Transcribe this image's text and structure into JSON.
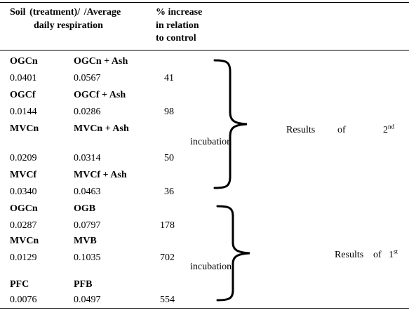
{
  "header": {
    "col1": "Soil   (treatment)/   /Average",
    "col1_line2": "daily respiration",
    "col3_line1": "% increase",
    "col3_line2": "in relation",
    "col3_line3": "to control"
  },
  "rows": [
    {
      "control_label": "OGCn",
      "ash_label": "OGCn + Ash",
      "control_value": "0.0401",
      "ash_value": "0.0567",
      "increase": "41"
    },
    {
      "control_label": "OGCf",
      "ash_label": "OGCf + Ash",
      "control_value": "0.0144",
      "ash_value": "0.0286",
      "increase": "98"
    },
    {
      "control_label": "MVCn",
      "ash_label": "MVCn + Ash",
      "control_value": "0.0209",
      "ash_value": "0.0314",
      "increase": "50"
    },
    {
      "control_label": "MVCf",
      "ash_label": "MVCf + Ash",
      "control_value": "0.0340",
      "ash_value": "0.0463",
      "increase": "36"
    },
    {
      "control_label": "OGCn",
      "ash_label": "OGB",
      "control_value": "0.0287",
      "ash_value": "0.0797",
      "increase": "178"
    },
    {
      "control_label": "MVCn",
      "ash_label": "MVB",
      "control_value": "0.0129",
      "ash_value": "0.1035",
      "increase": "702"
    },
    {
      "control_label": "PFC",
      "ash_label": "PFB",
      "control_value": "0.0076",
      "ash_value": "0.0497",
      "increase": "554"
    }
  ],
  "group2": {
    "results": "Results",
    "of": "of",
    "number": "2",
    "sup": "nd",
    "incubation": "incubation"
  },
  "group1": {
    "results": "Results",
    "of": "of",
    "number": "1",
    "sup": "st",
    "incubation": "incubation"
  }
}
